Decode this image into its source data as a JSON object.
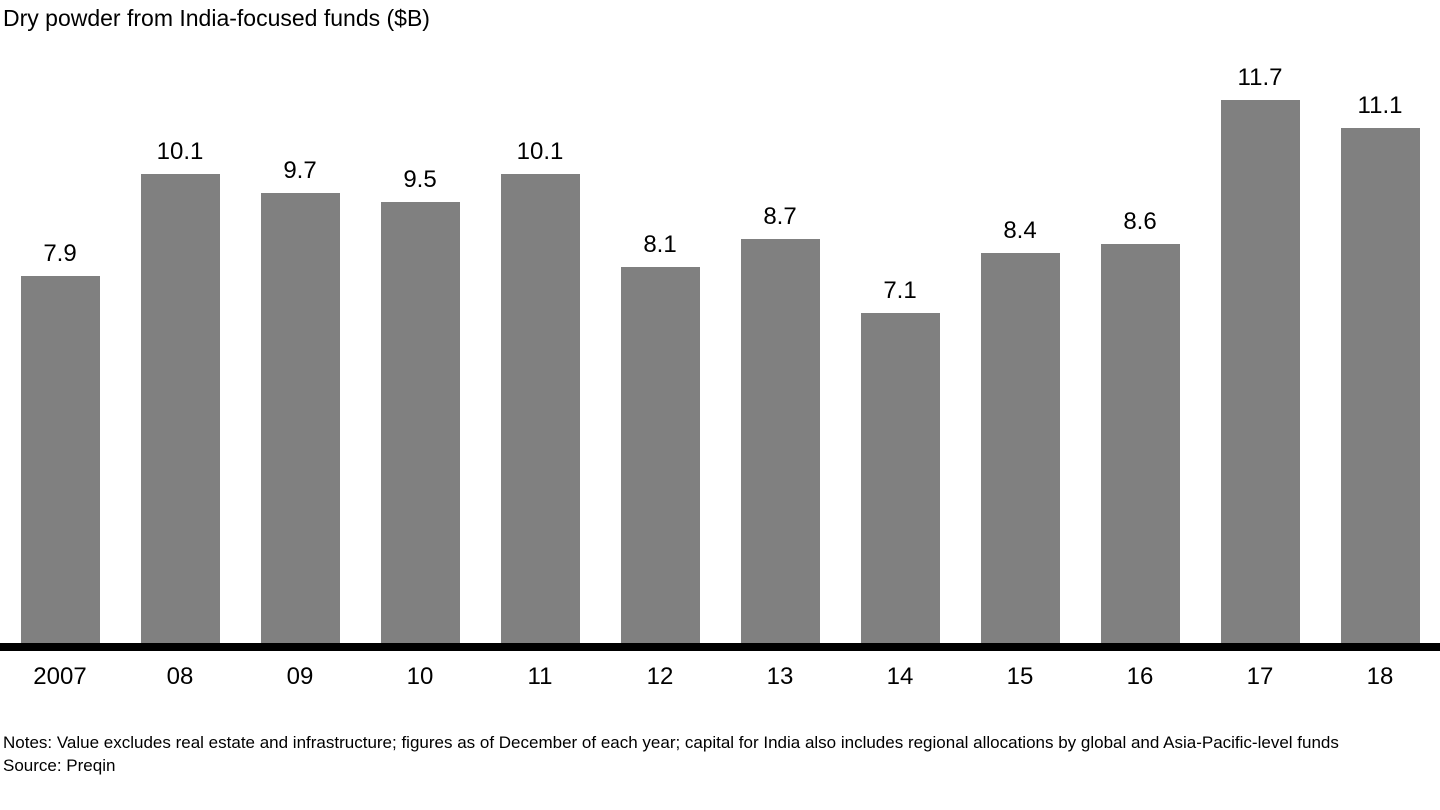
{
  "title": "Dry powder from India-focused funds ($B)",
  "chart_data": {
    "type": "bar",
    "title": "Dry powder from India-focused funds ($B)",
    "categories": [
      "2007",
      "08",
      "09",
      "10",
      "11",
      "12",
      "13",
      "14",
      "15",
      "16",
      "17",
      "18"
    ],
    "values": [
      7.9,
      10.1,
      9.7,
      9.5,
      10.1,
      8.1,
      8.7,
      7.1,
      8.4,
      8.6,
      11.7,
      11.1
    ],
    "value_labels": [
      "7.9",
      "10.1",
      "9.7",
      "9.5",
      "10.1",
      "8.1",
      "8.7",
      "7.1",
      "8.4",
      "8.6",
      "11.7",
      "11.1"
    ],
    "xlabel": "",
    "ylabel": "",
    "ylim": [
      0,
      12.67
    ],
    "grid": false,
    "legend": "none",
    "bar_color": "#808080",
    "axis_color": "#000000",
    "label_color": "#000000"
  },
  "footer": {
    "notes": "Notes: Value excludes real estate and infrastructure; figures as of December of each year; capital for India also includes regional allocations by global and Asia-Pacific-level funds",
    "source": "Source: Preqin"
  }
}
